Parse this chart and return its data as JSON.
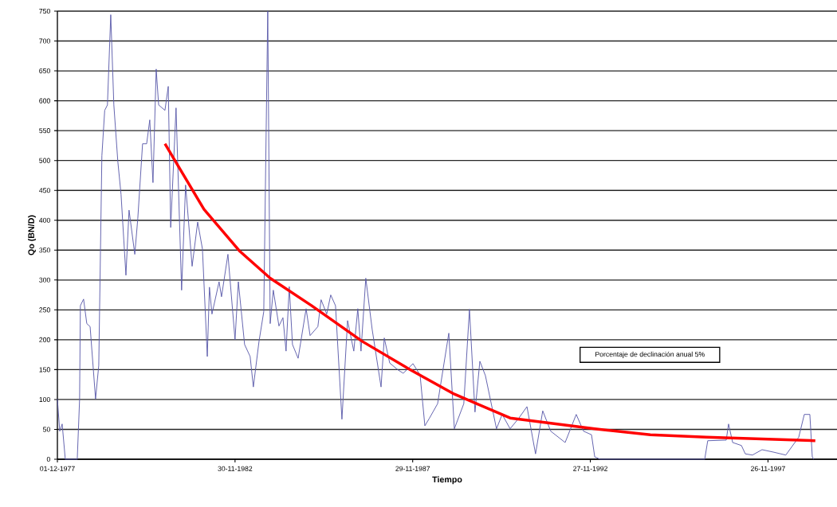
{
  "chart_data": {
    "type": "line",
    "xlabel": "Tiempo",
    "ylabel": "Qo (BN/D)",
    "xlim": [
      "1977-12-01",
      "1999-11-05"
    ],
    "xticks": [
      {
        "value": "1977-12-01",
        "label": "01-12-1977"
      },
      {
        "value": "1982-11-30",
        "label": "30-11-1982"
      },
      {
        "value": "1987-11-29",
        "label": "29-11-1987"
      },
      {
        "value": "1992-11-27",
        "label": "27-11-1992"
      },
      {
        "value": "1997-11-26",
        "label": "26-11-1997"
      }
    ],
    "ylim": [
      0,
      750
    ],
    "yticks": [
      0,
      50,
      100,
      150,
      200,
      250,
      300,
      350,
      400,
      450,
      500,
      550,
      600,
      650,
      700,
      750
    ],
    "grid": "y",
    "annotations": [
      "Porcentaje de declinación anual 5%"
    ],
    "series": [
      {
        "color": "#5a5aaa",
        "x": [
          "1977-12-01",
          "1977-12-25",
          "1978-01-19",
          "1978-02-20",
          "1978-06-23",
          "1978-07-17",
          "1978-07-25",
          "1978-08-27",
          "1978-09-29",
          "1978-11-02",
          "1978-12-28",
          "1979-01-30",
          "1979-03-03",
          "1979-04-01",
          "1979-04-29",
          "1979-06-02",
          "1979-07-04",
          "1979-08-14",
          "1979-09-16",
          "1979-11-05",
          "1979-12-07",
          "1980-02-04",
          "1980-03-06",
          "1980-04-24",
          "1980-06-05",
          "1980-07-07",
          "1980-08-09",
          "1980-09-11",
          "1980-10-06",
          "1980-12-10",
          "1981-01-13",
          "1981-02-07",
          "1981-04-03",
          "1981-05-30",
          "1981-07-10",
          "1981-09-15",
          "1981-11-11",
          "1981-12-30",
          "1982-02-18",
          "1982-03-12",
          "1982-04-07",
          "1982-06-19",
          "1982-07-14",
          "1982-09-18",
          "1982-11-30",
          "1983-01-03",
          "1983-03-08",
          "1983-05-04",
          "1983-06-06",
          "1983-08-03",
          "1983-09-21",
          "1983-11-01",
          "1983-11-26",
          "1983-12-28",
          "1984-02-24",
          "1984-04-05",
          "1984-05-07",
          "1984-06-09",
          "1984-07-12",
          "1984-09-08",
          "1984-11-29",
          "1985-01-09",
          "1985-03-30",
          "1985-05-02",
          "1985-06-29",
          "1985-08-09",
          "1985-09-27",
          "1985-12-02",
          "1986-01-29",
          "1986-04-03",
          "1986-05-14",
          "1986-06-16",
          "1986-08-04",
          "1986-10-09",
          "1987-01-08",
          "1987-02-10",
          "1987-04-07",
          "1987-07-05",
          "1987-08-24",
          "1987-12-02",
          "1988-02-13",
          "1988-04-02",
          "1988-05-20",
          "1988-08-11",
          "1988-12-04",
          "1989-01-30",
          "1989-05-07",
          "1989-07-04",
          "1989-08-30",
          "1989-10-19",
          "1989-12-15",
          "1990-04-08",
          "1990-06-05",
          "1990-08-26",
          "1990-11-24",
          "1991-02-15",
          "1991-05-14",
          "1991-07-27",
          "1991-10-17",
          "1992-03-13",
          "1992-07-05",
          "1992-09-18",
          "1992-12-09",
          "1993-01-11",
          "1993-03-08",
          "1996-02-15",
          "1996-03-17",
          "1996-09-23",
          "1996-10-17",
          "1996-11-28",
          "1997-02-26",
          "1997-04-07",
          "1997-06-19",
          "1997-09-26",
          "1998-01-19",
          "1998-05-28",
          "1998-10-08",
          "1998-12-04",
          "1999-01-30",
          "1999-02-24",
          "1999-03-11"
        ],
        "values": [
          101,
          47,
          59,
          0,
          0,
          100,
          257,
          268,
          227,
          222,
          101,
          157,
          508,
          584,
          593,
          744,
          593,
          498,
          443,
          308,
          417,
          343,
          403,
          528,
          528,
          568,
          463,
          653,
          593,
          584,
          624,
          388,
          588,
          283,
          459,
          323,
          397,
          352,
          172,
          288,
          243,
          297,
          272,
          343,
          200,
          297,
          192,
          172,
          121,
          197,
          247,
          750,
          227,
          283,
          223,
          237,
          181,
          289,
          192,
          169,
          252,
          207,
          222,
          267,
          243,
          275,
          257,
          67,
          232,
          181,
          252,
          181,
          303,
          217,
          121,
          203,
          161,
          149,
          144,
          160,
          141,
          56,
          69,
          93,
          211,
          51,
          93,
          251,
          79,
          164,
          140,
          51,
          75,
          51,
          69,
          88,
          9,
          81,
          47,
          28,
          75,
          47,
          41,
          4,
          0,
          0,
          31,
          32,
          59,
          28,
          23,
          9,
          7,
          16,
          12,
          7,
          37,
          75,
          75,
          4,
          0
        ]
      },
      {
        "color": "#ff0000",
        "x": [
          "1980-12-10",
          "1982-01-16",
          "1983-01-19",
          "1983-11-26",
          "1985-01-26",
          "1986-07-02",
          "1987-10-12",
          "1989-01-30",
          "1990-08-26",
          "1993-01-11",
          "1994-08-06",
          "1996-03-01",
          "1999-03-27"
        ],
        "values": [
          528,
          418,
          348,
          303,
          257,
          197,
          152,
          109,
          69,
          51,
          41,
          37,
          31
        ]
      }
    ]
  }
}
